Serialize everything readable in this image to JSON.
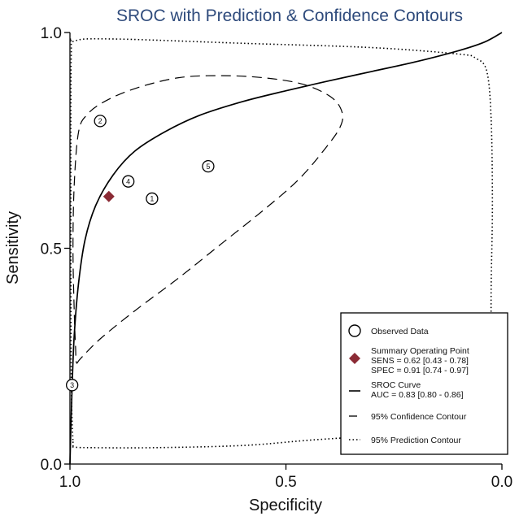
{
  "chart_data": {
    "type": "scatter",
    "title": "SROC with Prediction & Confidence Contours",
    "xlabel": "Specificity",
    "ylabel": "Sensitivity",
    "x_reversed": true,
    "xlim": [
      1.0,
      0.0
    ],
    "ylim": [
      0.0,
      1.0
    ],
    "x_ticks": [
      "1.0",
      "0.5",
      "0.0"
    ],
    "y_ticks": [
      "0.0",
      "0.5",
      "1.0"
    ],
    "observed": [
      {
        "label": "1",
        "spec": 0.81,
        "sens": 0.615
      },
      {
        "label": "2",
        "spec": 0.93,
        "sens": 0.795
      },
      {
        "label": "3",
        "spec": 0.995,
        "sens": 0.183
      },
      {
        "label": "4",
        "spec": 0.865,
        "sens": 0.655
      },
      {
        "label": "5",
        "spec": 0.68,
        "sens": 0.69
      }
    ],
    "summary_point": {
      "spec": 0.91,
      "sens": 0.62
    },
    "sroc_curve": [
      [
        1.0,
        0.0
      ],
      [
        0.998,
        0.08
      ],
      [
        0.995,
        0.18
      ],
      [
        0.99,
        0.3
      ],
      [
        0.98,
        0.42
      ],
      [
        0.965,
        0.52
      ],
      [
        0.94,
        0.6
      ],
      [
        0.9,
        0.67
      ],
      [
        0.85,
        0.725
      ],
      [
        0.78,
        0.77
      ],
      [
        0.7,
        0.808
      ],
      [
        0.6,
        0.84
      ],
      [
        0.5,
        0.865
      ],
      [
        0.4,
        0.888
      ],
      [
        0.3,
        0.91
      ],
      [
        0.2,
        0.932
      ],
      [
        0.1,
        0.958
      ],
      [
        0.04,
        0.978
      ],
      [
        0.0,
        1.0
      ]
    ],
    "confidence_contour": [
      [
        0.985,
        0.235
      ],
      [
        0.975,
        0.245
      ],
      [
        0.93,
        0.29
      ],
      [
        0.85,
        0.355
      ],
      [
        0.75,
        0.43
      ],
      [
        0.65,
        0.51
      ],
      [
        0.55,
        0.59
      ],
      [
        0.47,
        0.66
      ],
      [
        0.41,
        0.73
      ],
      [
        0.375,
        0.78
      ],
      [
        0.37,
        0.815
      ],
      [
        0.395,
        0.85
      ],
      [
        0.46,
        0.88
      ],
      [
        0.55,
        0.895
      ],
      [
        0.65,
        0.9
      ],
      [
        0.75,
        0.895
      ],
      [
        0.85,
        0.87
      ],
      [
        0.92,
        0.84
      ],
      [
        0.96,
        0.81
      ],
      [
        0.98,
        0.77
      ],
      [
        0.99,
        0.65
      ],
      [
        0.993,
        0.5
      ],
      [
        0.99,
        0.35
      ],
      [
        0.987,
        0.27
      ],
      [
        0.985,
        0.235
      ]
    ],
    "prediction_contour": [
      [
        0.993,
        0.052
      ],
      [
        0.99,
        0.04
      ],
      [
        0.95,
        0.038
      ],
      [
        0.8,
        0.038
      ],
      [
        0.6,
        0.043
      ],
      [
        0.45,
        0.055
      ],
      [
        0.3,
        0.066
      ],
      [
        0.15,
        0.085
      ],
      [
        0.06,
        0.105
      ],
      [
        0.03,
        0.13
      ],
      [
        0.025,
        0.2
      ],
      [
        0.025,
        0.4
      ],
      [
        0.022,
        0.6
      ],
      [
        0.025,
        0.8
      ],
      [
        0.035,
        0.91
      ],
      [
        0.06,
        0.94
      ],
      [
        0.1,
        0.95
      ],
      [
        0.3,
        0.965
      ],
      [
        0.6,
        0.975
      ],
      [
        0.9,
        0.985
      ],
      [
        0.99,
        0.98
      ],
      [
        0.997,
        0.95
      ],
      [
        0.998,
        0.6
      ],
      [
        0.997,
        0.2
      ],
      [
        0.993,
        0.052
      ]
    ]
  },
  "legend": {
    "observed": "Observed Data",
    "summary_title": "Summary Operating Point",
    "summary_sens": "SENS = 0.62 [0.43 - 0.78]",
    "summary_spec": "SPEC = 0.91 [0.74 - 0.97]",
    "sroc_title": "SROC Curve",
    "sroc_auc": "AUC = 0.83 [0.80 - 0.86]",
    "confidence": "95% Confidence Contour",
    "prediction": "95% Prediction Contour"
  },
  "colors": {
    "title": "#2f4b7c",
    "summary_marker": "#8b2b35",
    "line": "#000000"
  }
}
